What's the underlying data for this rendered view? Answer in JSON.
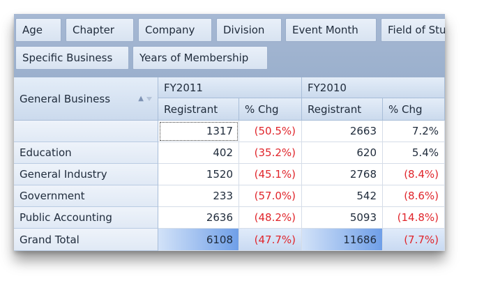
{
  "filter_fields": [
    "Age",
    "Chapter",
    "Company",
    "Division",
    "Event Month",
    "Field of Stu"
  ],
  "filter_fields_row2": [
    "Specific Business",
    "Years of Membership"
  ],
  "row_field": {
    "label": "General Business",
    "sort_icon": "sort-ascending-icon",
    "filter_icon": "filter-icon"
  },
  "column_groups": [
    {
      "label": "FY2011",
      "measures": [
        "Registrant",
        "% Chg"
      ]
    },
    {
      "label": "FY2010",
      "measures": [
        "Registrant",
        "% Chg"
      ]
    }
  ],
  "rows": [
    {
      "label": "",
      "values": [
        "1317",
        "(50.5%)",
        "2663",
        "7.2%"
      ]
    },
    {
      "label": "Education",
      "values": [
        "402",
        "(35.2%)",
        "620",
        "5.4%"
      ]
    },
    {
      "label": "General Industry",
      "values": [
        "1520",
        "(45.1%)",
        "2768",
        "(8.4%)"
      ]
    },
    {
      "label": "Government",
      "values": [
        "233",
        "(57.0%)",
        "542",
        "(8.6%)"
      ]
    },
    {
      "label": "Public Accounting",
      "values": [
        "2636",
        "(48.2%)",
        "5093",
        "(14.8%)"
      ]
    }
  ],
  "grand_total": {
    "label": "Grand Total",
    "values": [
      "6108",
      "(47.7%)",
      "11686",
      "(7.7%)"
    ]
  },
  "colors": {
    "negative": "#e0252b",
    "header": "#cbdaed",
    "total_highlight": "#6f9fe8"
  }
}
